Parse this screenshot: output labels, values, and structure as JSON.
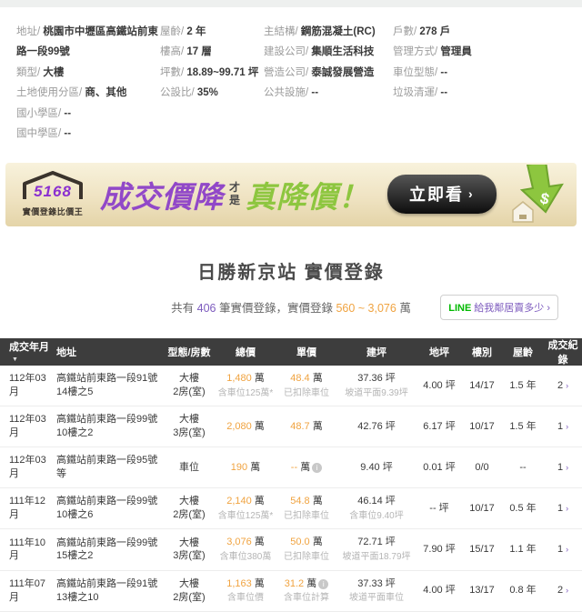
{
  "property_info": {
    "columns": [
      {
        "items": [
          {
            "label": "地址/",
            "value": "桃園市中壢區高鐵站前東路一段99號"
          },
          {
            "label": "類型/",
            "value": "大樓"
          },
          {
            "label": "土地使用分區/",
            "value": "商、其他"
          },
          {
            "label": "國小學區/",
            "value": "--"
          },
          {
            "label": "國中學區/",
            "value": "--"
          }
        ]
      },
      {
        "items": [
          {
            "label": "屋齡/",
            "value": "2 年"
          },
          {
            "label": "樓高/",
            "value": "17 層"
          },
          {
            "label": "坪數/",
            "value": "18.89~99.71 坪"
          },
          {
            "label": "公設比/",
            "value": "35%"
          }
        ]
      },
      {
        "items": [
          {
            "label": "主結構/",
            "value": "鋼筋混凝土(RC)"
          },
          {
            "label": "建設公司/",
            "value": "集順生活科技"
          },
          {
            "label": "營造公司/",
            "value": "泰誠發展營造"
          },
          {
            "label": "公共設施/",
            "value": "--"
          }
        ]
      },
      {
        "items": [
          {
            "label": "戶數/",
            "value": "278 戶"
          },
          {
            "label": "管理方式/",
            "value": "管理員"
          },
          {
            "label": "車位型態/",
            "value": "--"
          },
          {
            "label": "垃圾清運/",
            "value": "--"
          }
        ]
      }
    ]
  },
  "banner": {
    "logo_number": "5168",
    "logo_caption": "實價登錄比價王",
    "headline_purple": "成交價降",
    "headline_mid_top": "才",
    "headline_mid_bottom": "是",
    "headline_green": "真降價！",
    "cta_label": "立即看",
    "cta_arrow": "›",
    "dollar_glyph": "$"
  },
  "section": {
    "title": "日勝新京站 實價登錄",
    "summary": {
      "prefix": "共有 ",
      "count": "406",
      "middle": " 筆實價登錄，實價登錄 ",
      "range": "560 ~ 3,076",
      "suffix": " 萬"
    },
    "line_button": {
      "brand": "LINE",
      "label": "給我鄰居賣多少 ›"
    }
  },
  "table": {
    "headers": [
      "成交年月",
      "地址",
      "型態/房數",
      "總價",
      "單價",
      "建坪",
      "地坪",
      "樓別",
      "屋齡",
      "成交紀錄"
    ],
    "sort_caret": "▼",
    "price_unit": "萬",
    "info_glyph": "i",
    "records_arrow": "›",
    "rows": [
      {
        "date": "112年03月",
        "address": "高鐵站前東路一段91號14樓之5",
        "type": "大樓",
        "rooms": "2房(室)",
        "total": "1,480",
        "total_note": "含車位125萬*",
        "unit": "48.4",
        "unit_info": false,
        "unit_note": "已扣除車位",
        "barea": "37.36 坪",
        "barea_note": "坡道平面9.39坪",
        "larea": "4.00 坪",
        "floor": "14/17",
        "age": "1.5 年",
        "records": "2"
      },
      {
        "date": "112年03月",
        "address": "高鐵站前東路一段99號10樓之2",
        "type": "大樓",
        "rooms": "3房(室)",
        "total": "2,080",
        "total_note": "",
        "unit": "48.7",
        "unit_info": false,
        "unit_note": "",
        "barea": "42.76 坪",
        "barea_note": "",
        "larea": "6.17 坪",
        "floor": "10/17",
        "age": "1.5 年",
        "records": "1"
      },
      {
        "date": "112年03月",
        "address": "高鐵站前東路一段95號等",
        "type": "車位",
        "rooms": "",
        "total": "190",
        "total_note": "",
        "unit": "--",
        "unit_info": true,
        "unit_note": "",
        "barea": "9.40 坪",
        "barea_note": "",
        "larea": "0.01 坪",
        "floor": "0/0",
        "age": "--",
        "records": "1"
      },
      {
        "date": "111年12月",
        "address": "高鐵站前東路一段99號10樓之6",
        "type": "大樓",
        "rooms": "2房(室)",
        "total": "2,140",
        "total_note": "含車位125萬*",
        "unit": "54.8",
        "unit_info": false,
        "unit_note": "已扣除車位",
        "barea": "46.14 坪",
        "barea_note": "含車位9.40坪",
        "larea": "-- 坪",
        "floor": "10/17",
        "age": "0.5 年",
        "records": "1"
      },
      {
        "date": "111年10月",
        "address": "高鐵站前東路一段99號15樓之2",
        "type": "大樓",
        "rooms": "3房(室)",
        "total": "3,076",
        "total_note": "含車位380萬",
        "unit": "50.0",
        "unit_info": false,
        "unit_note": "已扣除車位",
        "barea": "72.71 坪",
        "barea_note": "坡道平面18.79坪",
        "larea": "7.90 坪",
        "floor": "15/17",
        "age": "1.1 年",
        "records": "1"
      },
      {
        "date": "111年07月",
        "address": "高鐵站前東路一段91號13樓之10",
        "type": "大樓",
        "rooms": "2房(室)",
        "total": "1,163",
        "total_note": "含車位價",
        "unit": "31.2",
        "unit_info": true,
        "unit_note": "含車位計算",
        "barea": "37.33 坪",
        "barea_note": "坡道平面車位",
        "larea": "4.00 坪",
        "floor": "13/17",
        "age": "0.8 年",
        "records": "2"
      }
    ]
  }
}
